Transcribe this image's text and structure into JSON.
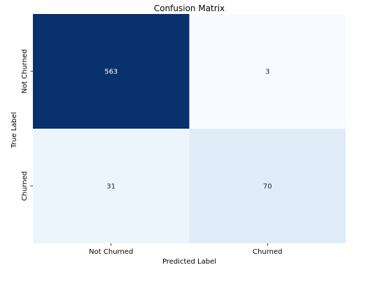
{
  "chart_data": {
    "type": "heatmap",
    "title": "Confusion Matrix",
    "xlabel": "Predicted Label",
    "ylabel": "True Label",
    "x_categories": [
      "Not Churned",
      "Churned"
    ],
    "y_categories": [
      "Not Churned",
      "Churned"
    ],
    "values": [
      [
        563,
        3
      ],
      [
        31,
        70
      ]
    ],
    "colormap": "Blues",
    "colorbar": false,
    "grid": false
  }
}
